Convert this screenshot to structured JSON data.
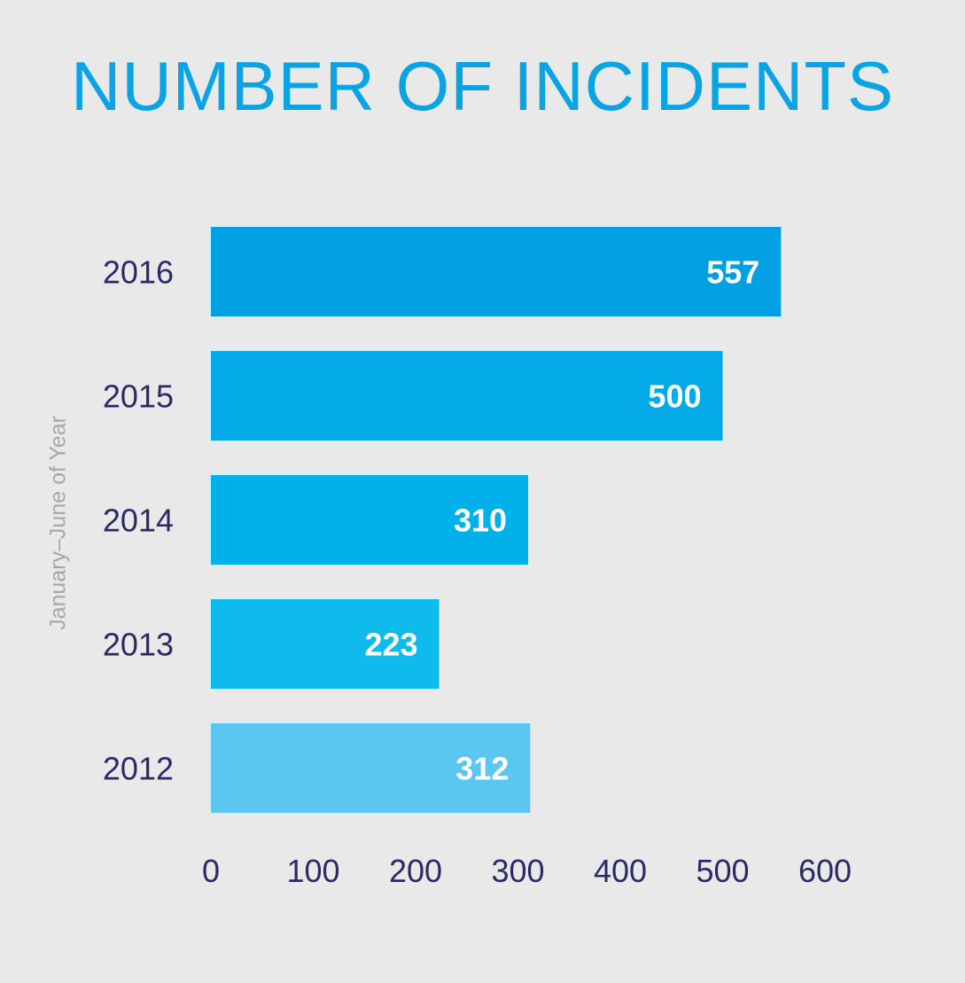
{
  "chart_data": {
    "type": "bar",
    "orientation": "horizontal",
    "title": "NUMBER OF INCIDENTS",
    "ylabel": "January–June of Year",
    "xlabel": "",
    "categories": [
      "2016",
      "2015",
      "2014",
      "2013",
      "2012"
    ],
    "values": [
      557,
      500,
      310,
      223,
      312
    ],
    "data_labels": [
      "557",
      "500",
      "310",
      "223",
      "312"
    ],
    "bar_colors": [
      "#00a0e2",
      "#03aae7",
      "#02b1ea",
      "#0fbaed",
      "#5bc6f1"
    ],
    "xticks": [
      0,
      100,
      200,
      300,
      400,
      500,
      600
    ],
    "xtick_labels": [
      "0",
      "100",
      "200",
      "300",
      "400",
      "500",
      "600"
    ],
    "xlim": [
      0,
      600
    ],
    "grid": false,
    "legend": "none"
  }
}
